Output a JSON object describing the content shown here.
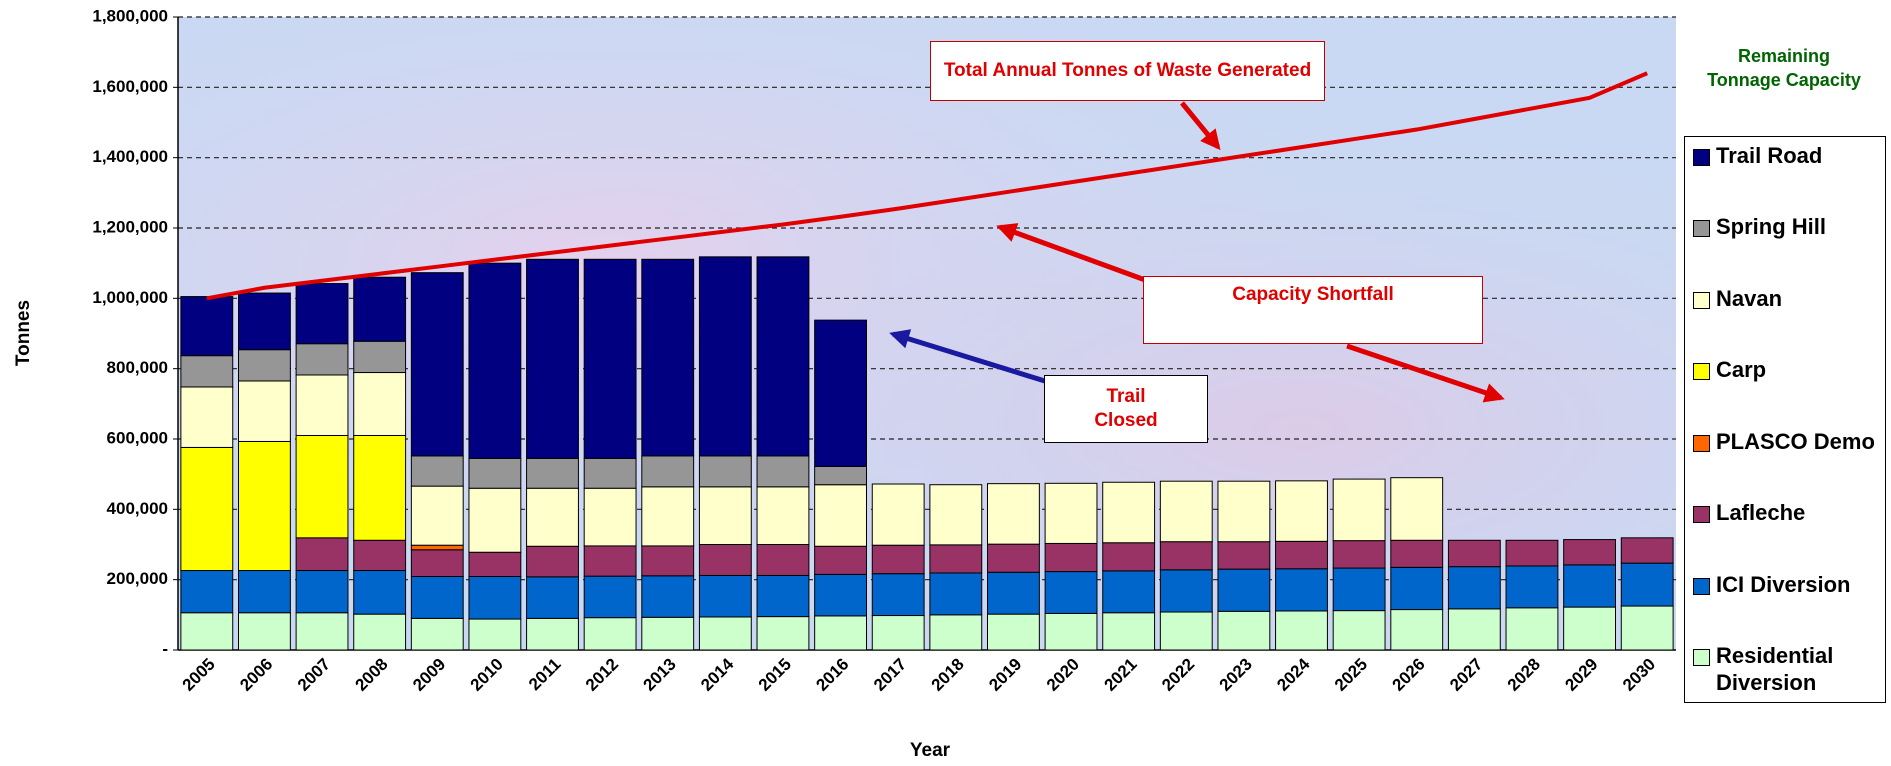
{
  "chart_data": {
    "type": "stacked_bar_line",
    "x_label": "Year",
    "y_label": "Tonnes",
    "legend_title": "Remaining Tonnage Capacity",
    "legend": "right",
    "annotations": [
      "Total Annual Tonnes of Waste Generated",
      "Capacity Shortfall",
      "Trail Closed"
    ],
    "categories": [
      "2005",
      "2006",
      "2007",
      "2008",
      "2009",
      "2010",
      "2011",
      "2012",
      "2013",
      "2014",
      "2015",
      "2016",
      "2017",
      "2018",
      "2019",
      "2020",
      "2021",
      "2022",
      "2023",
      "2024",
      "2025",
      "2026",
      "2027",
      "2028",
      "2029",
      "2030"
    ],
    "ylim": [
      0,
      1800000
    ],
    "yticks": [
      {
        "value": 0,
        "label": "-"
      },
      {
        "value": 200000,
        "label": "200,000"
      },
      {
        "value": 400000,
        "label": "400,000"
      },
      {
        "value": 600000,
        "label": "600,000"
      },
      {
        "value": 800000,
        "label": "800,000"
      },
      {
        "value": 1000000,
        "label": "1,000,000"
      },
      {
        "value": 1200000,
        "label": "1,200,000"
      },
      {
        "value": 1400000,
        "label": "1,400,000"
      },
      {
        "value": 1600000,
        "label": "1,600,000"
      },
      {
        "value": 1800000,
        "label": "1,800,000"
      }
    ],
    "grid": true,
    "series": [
      {
        "name": "Residential Diversion",
        "color": "#ccffcc",
        "values": [
          106000,
          106000,
          106000,
          102000,
          90000,
          88000,
          90000,
          92000,
          93000,
          94000,
          95000,
          97000,
          98000,
          100000,
          102000,
          104000,
          106000,
          108000,
          110000,
          111000,
          112000,
          115000,
          117000,
          120000,
          122000,
          125000
        ]
      },
      {
        "name": "ICI Diversion",
        "color": "#0066cc",
        "values": [
          120000,
          120000,
          120000,
          124000,
          119000,
          121000,
          118000,
          118000,
          118000,
          118000,
          117000,
          118000,
          119000,
          119000,
          119000,
          119000,
          119000,
          120000,
          120000,
          120000,
          121000,
          120000,
          120000,
          119000,
          120000,
          122000
        ]
      },
      {
        "name": "Lafleche",
        "color": "#993366",
        "values": [
          0,
          0,
          93000,
          86000,
          76000,
          69000,
          87000,
          86000,
          85000,
          88000,
          88000,
          80000,
          81000,
          80000,
          80000,
          80000,
          80000,
          80000,
          78000,
          78000,
          78000,
          77000,
          75000,
          73000,
          72000,
          72000
        ]
      },
      {
        "name": "PLASCO Demo",
        "color": "#ff6600",
        "values": [
          0,
          0,
          0,
          0,
          13000,
          0,
          0,
          0,
          0,
          0,
          0,
          0,
          0,
          0,
          0,
          0,
          0,
          0,
          0,
          0,
          0,
          0,
          0,
          0,
          0,
          0
        ]
      },
      {
        "name": "Carp",
        "color": "#ffff00",
        "values": [
          350000,
          367000,
          291000,
          298000,
          0,
          0,
          0,
          0,
          0,
          0,
          0,
          0,
          0,
          0,
          0,
          0,
          0,
          0,
          0,
          0,
          0,
          0,
          0,
          0,
          0,
          0
        ]
      },
      {
        "name": "Navan",
        "color": "#ffffcc",
        "values": [
          172000,
          172000,
          172000,
          179000,
          168000,
          182000,
          165000,
          164000,
          168000,
          164000,
          164000,
          175000,
          174000,
          171000,
          172000,
          171000,
          172000,
          172000,
          172000,
          172000,
          175000,
          178000,
          0,
          0,
          0,
          0
        ]
      },
      {
        "name": "Spring Hill",
        "color": "#969696",
        "values": [
          89000,
          89000,
          89000,
          89000,
          86000,
          85000,
          85000,
          85000,
          88000,
          88000,
          88000,
          52000,
          0,
          0,
          0,
          0,
          0,
          0,
          0,
          0,
          0,
          0,
          0,
          0,
          0,
          0
        ]
      },
      {
        "name": "Trail Road",
        "color": "#000080",
        "values": [
          168000,
          161000,
          171000,
          182000,
          521000,
          555000,
          566000,
          566000,
          559000,
          566000,
          566000,
          416000,
          0,
          0,
          0,
          0,
          0,
          0,
          0,
          0,
          0,
          0,
          0,
          0,
          0,
          0
        ]
      }
    ],
    "line": {
      "color": "#e00000",
      "values": [
        1000000,
        1030000,
        1050000,
        1070000,
        1090000,
        1110000,
        1130000,
        1150000,
        1170000,
        1190000,
        1210000,
        1232000,
        1255000,
        1280000,
        1305000,
        1330000,
        1355000,
        1380000,
        1405000,
        1430000,
        1455000,
        1480000,
        1510000,
        1540000,
        1570000,
        1640000
      ]
    }
  }
}
